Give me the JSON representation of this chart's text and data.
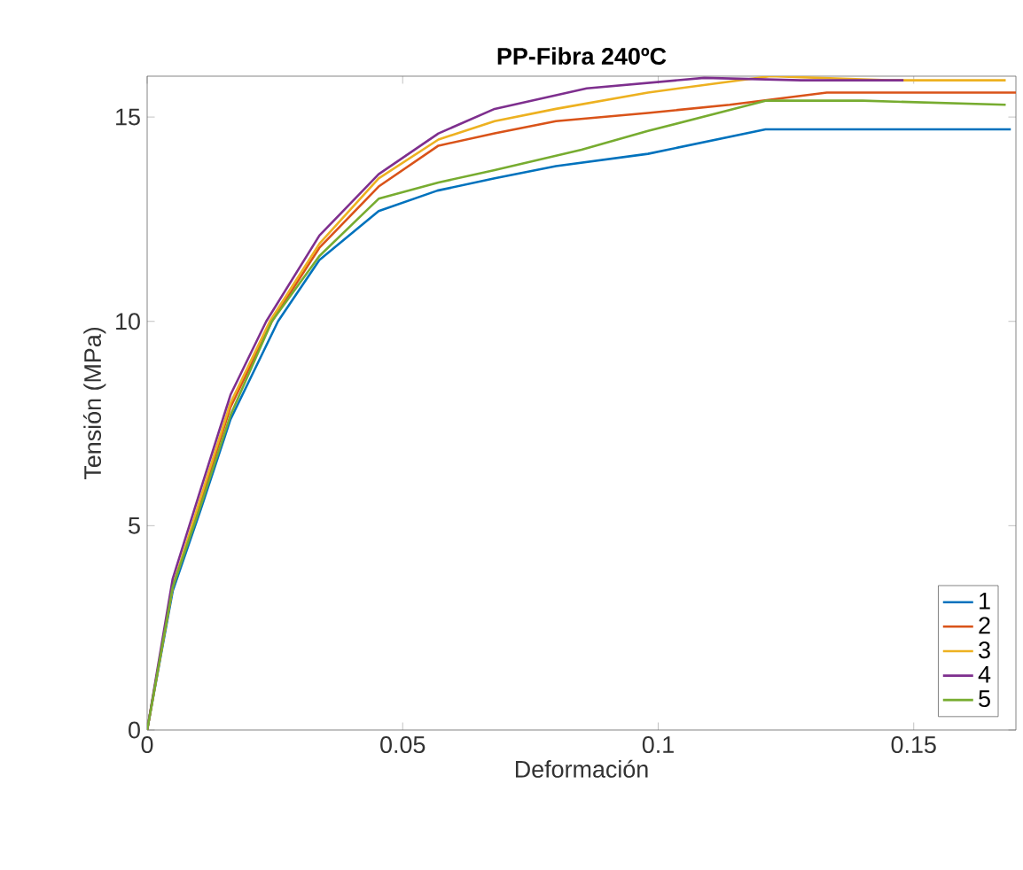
{
  "chart_data": {
    "type": "line",
    "title": "PP-Fibra 240ºC",
    "xlabel": "Deformación",
    "ylabel": "Tensión (MPa)",
    "xlim": [
      0,
      0.17
    ],
    "ylim": [
      0,
      16
    ],
    "xticks": [
      0,
      0.05,
      0.1,
      0.15
    ],
    "yticks": [
      0,
      5,
      10,
      15
    ],
    "grid": false,
    "legend": "bottom right",
    "marker": "none",
    "line_style": "solid",
    "series": [
      {
        "name": "1",
        "color": "#0072bd",
        "x": [
          0,
          0.005,
          0.0105,
          0.0163,
          0.0256,
          0.0337,
          0.0453,
          0.0568,
          0.068,
          0.08,
          0.098,
          0.121,
          0.14,
          0.169
        ],
        "values": [
          0,
          3.4,
          5.4,
          7.6,
          10,
          11.5,
          12.7,
          13.2,
          13.5,
          13.8,
          14.1,
          14.7,
          14.7,
          14.7
        ]
      },
      {
        "name": "2",
        "color": "#d95319",
        "x": [
          0,
          0.005,
          0.0105,
          0.0163,
          0.0244,
          0.0337,
          0.0453,
          0.057,
          0.068,
          0.08,
          0.098,
          0.114,
          0.133,
          0.17
        ],
        "values": [
          0,
          3.5,
          5.6,
          7.9,
          10,
          11.8,
          13.3,
          14.3,
          14.6,
          14.9,
          15.1,
          15.3,
          15.6,
          15.6
        ]
      },
      {
        "name": "3",
        "color": "#edb120",
        "x": [
          0,
          0.005,
          0.0105,
          0.0163,
          0.024,
          0.0337,
          0.0453,
          0.057,
          0.068,
          0.08,
          0.098,
          0.122,
          0.145,
          0.168
        ],
        "values": [
          0,
          3.5,
          5.7,
          8.0,
          10,
          11.9,
          13.5,
          14.45,
          14.9,
          15.2,
          15.6,
          16.0,
          15.9,
          15.9
        ]
      },
      {
        "name": "4",
        "color": "#7e2f8e",
        "x": [
          0,
          0.005,
          0.0105,
          0.0163,
          0.0233,
          0.0337,
          0.0453,
          0.057,
          0.068,
          0.086,
          0.109,
          0.128,
          0.148
        ],
        "values": [
          0,
          3.7,
          5.9,
          8.2,
          10,
          12.1,
          13.6,
          14.6,
          15.2,
          15.7,
          15.96,
          15.9,
          15.9
        ]
      },
      {
        "name": "5",
        "color": "#77ac30",
        "x": [
          0,
          0.005,
          0.0105,
          0.0163,
          0.0244,
          0.0337,
          0.0453,
          0.057,
          0.068,
          0.085,
          0.098,
          0.121,
          0.14,
          0.168
        ],
        "values": [
          0,
          3.5,
          5.5,
          7.7,
          10,
          11.6,
          13.0,
          13.4,
          13.7,
          14.2,
          14.66,
          15.4,
          15.4,
          15.3
        ]
      }
    ]
  }
}
